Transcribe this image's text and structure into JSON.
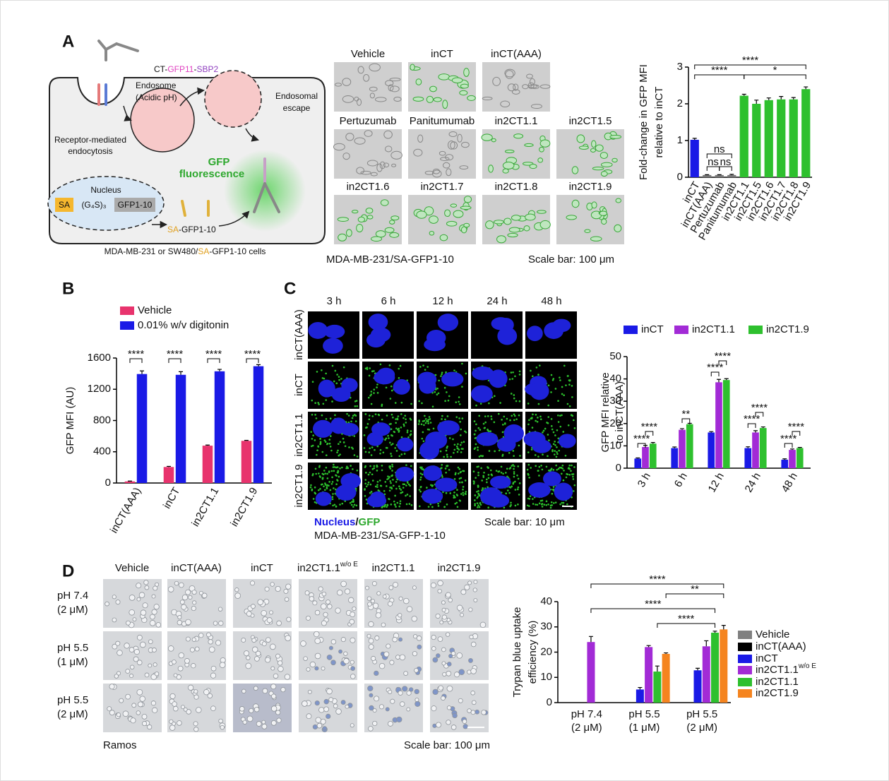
{
  "panel_labels": [
    "A",
    "B",
    "C",
    "D"
  ],
  "diagram": {
    "construct": [
      "CT-",
      "GFP11",
      "-",
      "SBP2"
    ],
    "endosome": [
      "Endosome",
      "(Acidic pH)"
    ],
    "escape": [
      "Endosomal",
      "escape"
    ],
    "endocytosis": [
      "Receptor-mediated",
      "endocytosis"
    ],
    "gfp": [
      "GFP",
      "fluorescence"
    ],
    "nucleus": "Nucleus",
    "gene": [
      "SA",
      "(G₄S)₃",
      "GFP1-10"
    ],
    "product": [
      "SA",
      "-GFP1-10"
    ],
    "caption": [
      "MDA-MB-231 or SW480/",
      "SA",
      "-GFP1-10 cells"
    ]
  },
  "panel_a_images": {
    "labels": [
      "Vehicle",
      "inCT",
      "inCT(AAA)",
      "Pertuzumab",
      "Panitumumab",
      "in2CT1.1",
      "in2CT1.5",
      "in2CT1.6",
      "in2CT1.7",
      "in2CT1.8",
      "in2CT1.9"
    ],
    "cell_line": "MDA-MB-231/SA-GFP1-10",
    "scale": "Scale bar: 100 μm"
  },
  "panel_c_images": {
    "columns": [
      "3 h",
      "6 h",
      "12 h",
      "24 h",
      "48 h"
    ],
    "rows": [
      "inCT(AAA)",
      "inCT",
      "in2CT1.1",
      "in2CT1.9"
    ],
    "stain": [
      "Nucleus",
      "/",
      "GFP"
    ],
    "scale": "Scale bar: 10 μm",
    "cell_line": "MDA-MB-231/SA-GFP-1-10"
  },
  "panel_d_images": {
    "columns": [
      [
        "Vehicle"
      ],
      [
        "inCT(AAA)"
      ],
      [
        "inCT"
      ],
      [
        "in2CT1.1",
        "w/o E"
      ],
      [
        "in2CT1.1"
      ],
      [
        "in2CT1.9"
      ]
    ],
    "rows": [
      [
        "pH 7.4",
        "(2 μM)"
      ],
      [
        "pH 5.5",
        "(1 μM)"
      ],
      [
        "pH 5.5",
        "(2 μM)"
      ]
    ],
    "cell_line": "Ramos",
    "scale": "Scale bar: 100 μm"
  },
  "chart_data": [
    {
      "type": "bar",
      "ylabel": [
        "Fold-change in GFP MFI",
        "relative to inCT"
      ],
      "categories": [
        "inCT",
        "inCT(AAA)",
        "Pertuzumab",
        "Panitumumab",
        "in2CT1.1",
        "in2CT1.5",
        "in2CT1.6",
        "in2CT1.7",
        "in2CT1.8",
        "in2CT1.9"
      ],
      "values": [
        1.02,
        0.06,
        0.06,
        0.06,
        2.22,
        2.0,
        2.1,
        2.12,
        2.12,
        2.4
      ],
      "errors": [
        0.04,
        0.01,
        0.01,
        0.02,
        0.04,
        0.1,
        0.06,
        0.08,
        0.05,
        0.06
      ],
      "colors": [
        "#1a1ae6",
        "#777777",
        "#777777",
        "#777777",
        "#2ec02e",
        "#2ec02e",
        "#2ec02e",
        "#2ec02e",
        "#2ec02e",
        "#2ec02e"
      ],
      "ylim": [
        0,
        3
      ],
      "yticks": [
        0,
        1,
        2,
        3
      ],
      "annotations": [
        "****",
        "****",
        "*",
        "ns",
        "ns",
        "ns"
      ]
    },
    {
      "type": "bar",
      "ylabel": [
        "GFP MFI (AU)"
      ],
      "categories": [
        "inCT(AAA)",
        "inCT",
        "in2CT1.1",
        "in2CT1.9"
      ],
      "series": [
        {
          "name": "Vehicle",
          "color": "#e8336d",
          "values": [
            20,
            205,
            478,
            540
          ],
          "errors": [
            5,
            8,
            8,
            6
          ]
        },
        {
          "name": "0.01% w/v digitonin",
          "color": "#1a1ae6",
          "values": [
            1395,
            1385,
            1430,
            1495
          ],
          "errors": [
            40,
            40,
            25,
            20
          ]
        }
      ],
      "ylim": [
        0,
        1600
      ],
      "yticks": [
        0,
        400,
        800,
        1200,
        1600
      ],
      "legend": "upper left",
      "annotations": [
        "****",
        "****",
        "****",
        "****"
      ]
    },
    {
      "type": "bar",
      "ylabel": [
        "GFP MFI relative",
        "to inCT(AAA)"
      ],
      "categories": [
        "3 h",
        "6 h",
        "12 h",
        "24 h",
        "48 h"
      ],
      "series": [
        {
          "name": "inCT",
          "color": "#1a1ae6",
          "values": [
            4.3,
            9,
            16,
            9,
            3.8
          ],
          "errors": [
            0.3,
            0.5,
            0.4,
            0.6,
            0.4
          ]
        },
        {
          "name": "in2CT1.1",
          "color": "#a22bd6",
          "values": [
            9.5,
            17.2,
            38.5,
            16,
            8.2
          ],
          "errors": [
            0.7,
            0.5,
            1.3,
            0.8,
            0.4
          ]
        },
        {
          "name": "in2CT1.9",
          "color": "#2ec02e",
          "values": [
            11,
            19.7,
            39.5,
            18,
            9
          ],
          "errors": [
            0.5,
            0.4,
            0.6,
            0.5,
            0.3
          ]
        }
      ],
      "ylim": [
        0,
        50
      ],
      "yticks": [
        0,
        10,
        20,
        30,
        40,
        50
      ],
      "legend": "top",
      "annotations": [
        "****",
        "****",
        "**",
        "****",
        "****",
        "****",
        "****",
        "****",
        "****"
      ]
    },
    {
      "type": "bar",
      "ylabel": [
        "Trypan blue uptake",
        "efficiency (%)"
      ],
      "categories": [
        [
          "pH 7.4",
          "(2 μM)"
        ],
        [
          "pH 5.5",
          "(1 μM)"
        ],
        [
          "pH 5.5",
          "(2 μM)"
        ]
      ],
      "series": [
        {
          "name": "Vehicle",
          "color": "#808080",
          "values": [
            0,
            0,
            0
          ],
          "errors": [
            0,
            0,
            0
          ]
        },
        {
          "name": "inCT(AAA)",
          "color": "#000000",
          "values": [
            0,
            0,
            0
          ],
          "errors": [
            0,
            0,
            0
          ]
        },
        {
          "name": "inCT",
          "color": "#1a1ae6",
          "values": [
            0,
            5.2,
            12.8
          ],
          "errors": [
            0,
            0.8,
            0.8
          ]
        },
        {
          "name": "in2CT1.1",
          "name_sup": "w/o E",
          "color": "#a22bd6",
          "values": [
            24,
            22,
            22.3
          ],
          "errors": [
            2.2,
            0.6,
            2.2
          ]
        },
        {
          "name": "in2CT1.1",
          "color": "#2ec02e",
          "values": [
            0,
            12.3,
            27.7
          ],
          "errors": [
            0,
            2.2,
            0.6
          ]
        },
        {
          "name": "in2CT1.9",
          "color": "#f5841f",
          "values": [
            0,
            19.3,
            29
          ],
          "errors": [
            0,
            0.4,
            1.6
          ]
        }
      ],
      "ylim": [
        0,
        40
      ],
      "yticks": [
        0,
        10,
        20,
        30,
        40
      ],
      "legend": "right",
      "annotations": [
        "****",
        "**",
        "****",
        "****"
      ]
    }
  ]
}
